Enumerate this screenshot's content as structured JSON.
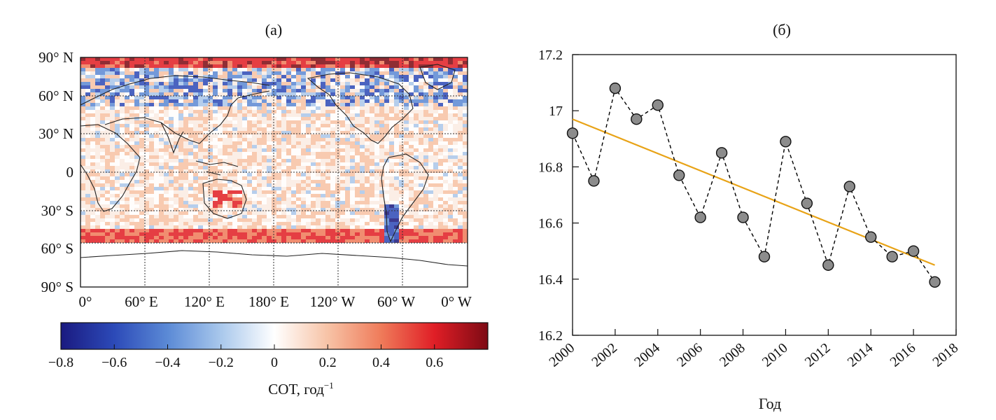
{
  "panel_a": {
    "title": "(a)",
    "lat_labels": [
      "90° N",
      "60° N",
      "30° N",
      "0",
      "30° S",
      "60° S",
      "90° S"
    ],
    "lon_labels": [
      "0°",
      "60° E",
      "120° E",
      "180° E",
      "120° W",
      "60° W",
      "0° W"
    ],
    "colorbar": {
      "ticks": [
        "−0.8",
        "−0.6",
        "−0.4",
        "−0.2",
        "0",
        "0.2",
        "0.4",
        "0.6"
      ],
      "label": "COT, год",
      "label_sup": "−1",
      "range": [
        -0.8,
        0.8
      ],
      "colors": [
        "#1a1a80",
        "#2c4ab8",
        "#5b8ad6",
        "#a9c8ec",
        "#ffffff",
        "#f7c3a6",
        "#ef7b5a",
        "#e01e26",
        "#7d0a14"
      ]
    }
  },
  "chart_data": {
    "type": "scatter",
    "title": "(б)",
    "xlabel": "Год",
    "ylabel": "",
    "xlim": [
      2000,
      2018
    ],
    "ylim": [
      16.2,
      17.2
    ],
    "xticks": [
      2000,
      2002,
      2004,
      2006,
      2008,
      2010,
      2012,
      2014,
      2016,
      2018
    ],
    "yticks": [
      16.2,
      16.4,
      16.6,
      16.8,
      17,
      17.2
    ],
    "ytick_labels": [
      "16.2",
      "16.4",
      "16.6",
      "16.8",
      "17",
      "17.2"
    ],
    "series": [
      {
        "style": "dashed-line-with-markers",
        "color": "#000000",
        "marker_fill": "#8c8c8c",
        "x": [
          2000,
          2001,
          2002,
          2003,
          2004,
          2005,
          2006,
          2007,
          2008,
          2009,
          2010,
          2011,
          2012,
          2013,
          2014,
          2015,
          2016,
          2017
        ],
        "y": [
          16.92,
          16.75,
          17.08,
          16.97,
          17.02,
          16.77,
          16.62,
          16.85,
          16.62,
          16.48,
          16.89,
          16.67,
          16.45,
          16.73,
          16.55,
          16.48,
          16.5,
          16.39
        ]
      },
      {
        "style": "trend-line",
        "color": "#e8a317",
        "x": [
          2000,
          2017
        ],
        "y": [
          16.97,
          16.45
        ]
      }
    ],
    "grid": false
  }
}
